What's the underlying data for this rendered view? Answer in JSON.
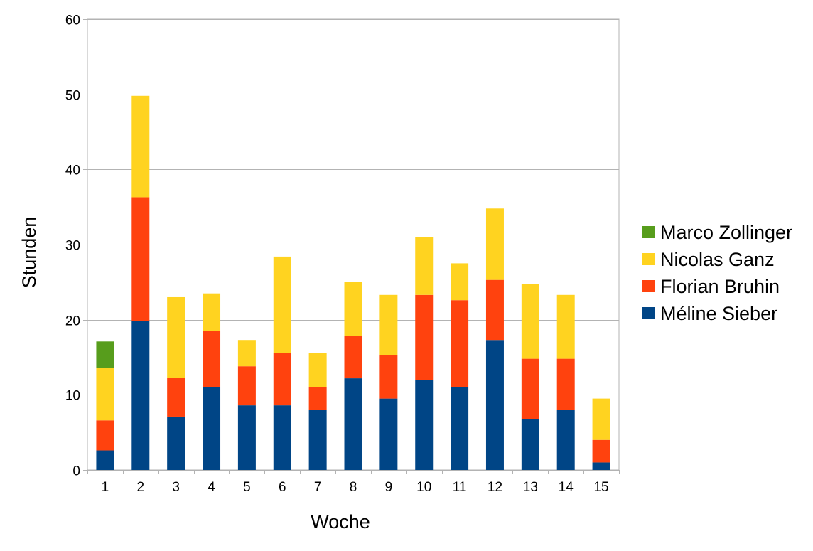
{
  "chart_data": {
    "type": "bar",
    "stacked": true,
    "title": "",
    "xlabel": "Woche",
    "ylabel": "Stunden",
    "ylim": [
      0,
      60
    ],
    "yticks": [
      0,
      10,
      20,
      30,
      40,
      50,
      60
    ],
    "grid": true,
    "legend_position": "right",
    "categories": [
      "1",
      "2",
      "3",
      "4",
      "5",
      "6",
      "7",
      "8",
      "9",
      "10",
      "11",
      "12",
      "13",
      "14",
      "15"
    ],
    "series": [
      {
        "name": "Méline Sieber",
        "color": "#004586",
        "values": [
          2.6,
          19.8,
          7.1,
          11.0,
          8.6,
          8.6,
          8.0,
          12.2,
          9.5,
          12.0,
          11.0,
          17.3,
          6.8,
          8.0,
          1.0
        ]
      },
      {
        "name": "Florian Bruhin",
        "color": "#ff420e",
        "values": [
          4.0,
          16.5,
          5.2,
          7.5,
          5.2,
          7.0,
          3.0,
          5.6,
          5.8,
          11.3,
          11.6,
          8.0,
          8.0,
          6.8,
          3.0
        ]
      },
      {
        "name": "Nicolas Ganz",
        "color": "#ffd320",
        "values": [
          7.0,
          13.5,
          10.7,
          5.0,
          3.5,
          12.8,
          4.6,
          7.2,
          8.0,
          7.7,
          4.9,
          9.5,
          9.9,
          8.5,
          5.5
        ]
      },
      {
        "name": "Marco Zollinger",
        "color": "#579d1c",
        "values": [
          3.5,
          0,
          0,
          0,
          0,
          0,
          0,
          0,
          0,
          0,
          0,
          0,
          0,
          0,
          0
        ]
      }
    ],
    "legend_order": [
      "Marco Zollinger",
      "Nicolas Ganz",
      "Florian Bruhin",
      "Méline Sieber"
    ]
  }
}
